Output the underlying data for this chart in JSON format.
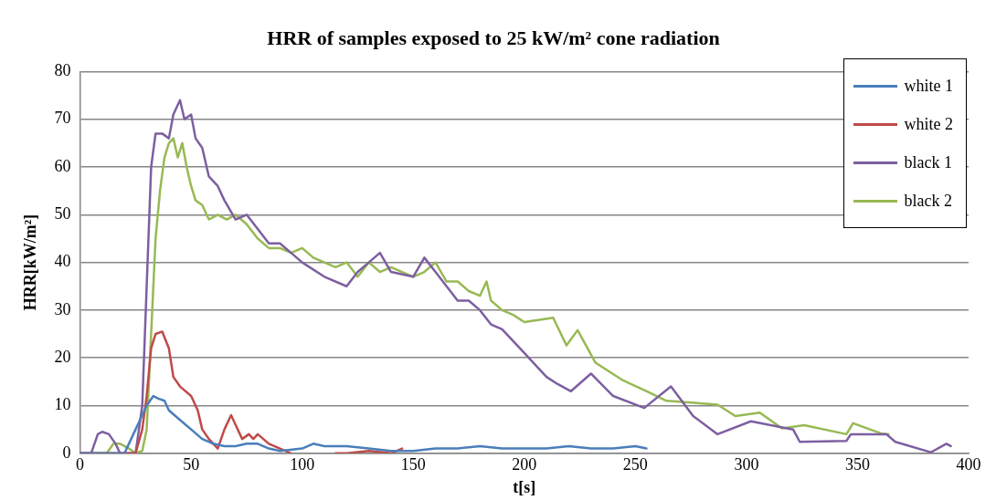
{
  "chart_data": {
    "type": "line",
    "title": "HRR of samples exposed to 25 kW/m² cone radiation",
    "xlabel": "t[s]",
    "ylabel": "HRR[kW/m²]",
    "xlim": [
      0,
      400
    ],
    "xticks": [
      0,
      50,
      100,
      150,
      200,
      250,
      300,
      350,
      400
    ],
    "ylim": [
      0,
      80
    ],
    "yticks": [
      0,
      10,
      20,
      30,
      40,
      50,
      60,
      70,
      80
    ],
    "grid": "y",
    "legend": "top right",
    "marker": "none",
    "line_style": "solid",
    "series": [
      {
        "name": "white 1",
        "color": "#4a7ebb",
        "x": [
          0,
          20,
          23,
          27,
          30,
          33,
          35,
          38,
          40,
          45,
          50,
          55,
          60,
          65,
          70,
          75,
          80,
          85,
          90,
          100,
          105,
          110,
          120,
          130,
          140,
          150,
          160,
          170,
          180,
          190,
          200,
          210,
          220,
          230,
          240,
          250,
          255
        ],
        "values": [
          0,
          0,
          3,
          7,
          10,
          12,
          11.5,
          11,
          9,
          7,
          5,
          3,
          2,
          1.5,
          1.5,
          2,
          2,
          1,
          0.5,
          1,
          2,
          1.5,
          1.5,
          1,
          0.5,
          0.5,
          1,
          1,
          1.5,
          1,
          1,
          1,
          1.5,
          1,
          1,
          1.5,
          1
        ]
      },
      {
        "name": "white 2",
        "color": "#be4b48",
        "x": [
          0,
          25,
          28,
          30,
          32,
          34,
          37,
          40,
          42,
          45,
          50,
          53,
          55,
          58,
          62,
          65,
          68,
          70,
          73,
          76,
          78,
          80,
          85,
          90,
          95,
          105,
          115,
          120,
          130,
          140,
          145
        ],
        "values": [
          0,
          0,
          5,
          12,
          22,
          25,
          25.5,
          22,
          16,
          14,
          12,
          9,
          5,
          3,
          1,
          5,
          8,
          6,
          3,
          4,
          3,
          4,
          2,
          1,
          0,
          null,
          0,
          0,
          0.5,
          0,
          1
        ]
      },
      {
        "name": "black 1",
        "color": "#7d5fa0",
        "x": [
          0,
          5,
          8,
          10,
          13,
          16,
          18,
          25,
          28,
          30,
          32,
          34,
          37,
          40,
          42,
          45,
          47,
          50,
          52,
          55,
          58,
          62,
          65,
          70,
          75,
          80,
          85,
          90,
          95,
          100,
          110,
          120,
          125,
          130,
          135,
          140,
          150,
          155,
          160,
          170,
          175,
          180,
          185,
          190,
          200,
          210,
          215,
          221,
          230,
          240,
          254,
          266,
          276,
          287,
          302,
          321,
          324,
          345,
          347,
          363,
          367,
          383,
          390,
          392
        ],
        "values": [
          0,
          0,
          4,
          4.5,
          4,
          2,
          0,
          0,
          10,
          35,
          60,
          67,
          67,
          66,
          71,
          74,
          70,
          71,
          66,
          64,
          58,
          56,
          53,
          49,
          50,
          47,
          44,
          44,
          42,
          40,
          37,
          35,
          38,
          40,
          42,
          38,
          37,
          41,
          38,
          32,
          32,
          30,
          27,
          26,
          21,
          16,
          14.5,
          13,
          16.7,
          12,
          9.5,
          14,
          7.8,
          4,
          6.7,
          5,
          2.4,
          2.6,
          4,
          4,
          2.4,
          0.2,
          2,
          1.5
        ]
      },
      {
        "name": "black 2",
        "color": "#98b954",
        "x": [
          0,
          12,
          15,
          18,
          22,
          25,
          28,
          30,
          32,
          34,
          36,
          38,
          40,
          42,
          44,
          46,
          48,
          50,
          52,
          55,
          58,
          62,
          66,
          70,
          75,
          80,
          85,
          90,
          95,
          100,
          105,
          110,
          115,
          120,
          125,
          130,
          135,
          140,
          150,
          155,
          160,
          165,
          170,
          175,
          180,
          183,
          185,
          190,
          195,
          200,
          213,
          219,
          224,
          232,
          244,
          256,
          264,
          287,
          295,
          306,
          316,
          326,
          345,
          348,
          361,
          364
        ],
        "values": [
          0,
          0,
          2,
          2,
          1,
          0,
          0.5,
          5,
          25,
          45,
          55,
          62,
          65,
          66,
          62,
          65,
          60,
          56,
          53,
          52,
          49,
          50,
          49,
          50,
          48,
          45,
          43,
          43,
          42,
          43,
          41,
          40,
          39,
          40,
          37,
          40,
          38,
          39,
          37,
          38,
          40,
          36,
          36,
          34,
          33,
          36,
          32,
          30,
          29,
          27.5,
          28.4,
          22.6,
          25.8,
          19,
          15.4,
          12.8,
          11,
          10.2,
          7.8,
          8.5,
          5.2,
          5.9,
          4,
          6.3,
          4.1,
          4
        ]
      }
    ]
  }
}
